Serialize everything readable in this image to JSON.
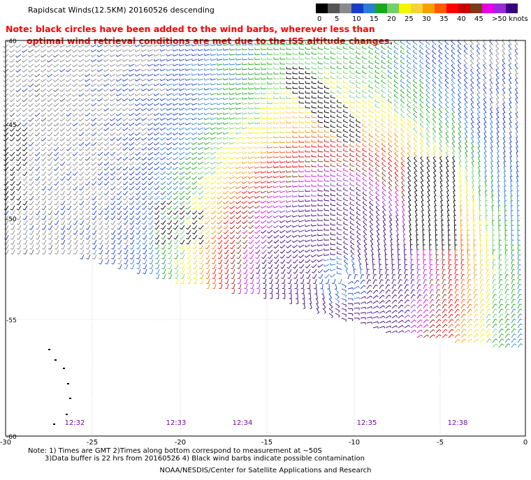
{
  "title": "Rapidscat Winds(12.5KM) 20160526 descending",
  "note": {
    "line1": "Note: black circles have been added to the wind barbs, wherever less than",
    "line2": "optimal wind retrieval conditions are met due to the ISS altitude changes."
  },
  "legend": {
    "colors": [
      "#000000",
      "#555555",
      "#8a8a8a",
      "#1a3dc8",
      "#2a7fd4",
      "#1aa81a",
      "#6fd06f",
      "#f5f500",
      "#f5d23c",
      "#f5a000",
      "#ff5a00",
      "#ff0000",
      "#c80000",
      "#7a3a1a",
      "#e600e6",
      "#9a2bd8",
      "#3a007a"
    ],
    "labels": [
      "0",
      "5",
      "10",
      "15",
      "20",
      "25",
      "30",
      "35",
      "40",
      "45",
      ">50 knots"
    ]
  },
  "map": {
    "lat_labels": [
      "-40",
      "-45",
      "-50",
      "-55",
      "-60"
    ],
    "lon_labels": [
      "-30",
      "-25",
      "-20",
      "-15",
      "-10",
      "-5",
      "0"
    ],
    "time_labels": [
      "12:32",
      "12:33",
      "12:34",
      "12:35",
      "12:38"
    ],
    "time_color": "#7a00b0"
  },
  "footer": {
    "line1": "Note: 1) Times are GMT 2)Times along bottom correspond to measurement at ~50S",
    "line2": "3)Data buffer is 22 hrs from 20160526 4) Black wind barbs indicate possible contamination",
    "line3": "NOAA/NESDIS/Center for Satellite Applications and Research"
  }
}
